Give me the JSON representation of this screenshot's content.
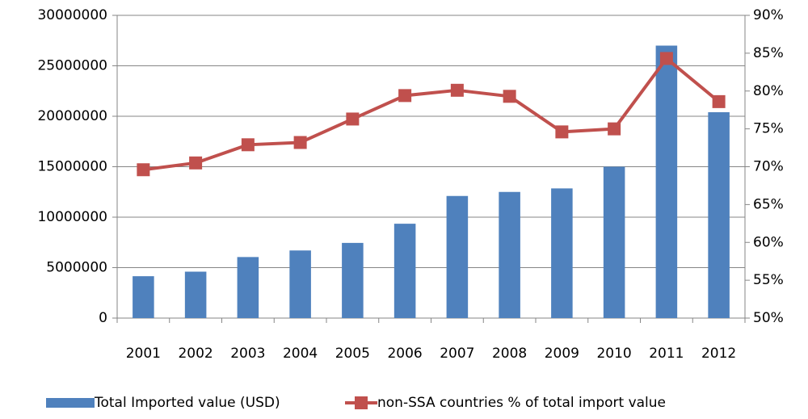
{
  "chart_data": {
    "type": "bar",
    "categories": [
      "2001",
      "2002",
      "2003",
      "2004",
      "2005",
      "2006",
      "2007",
      "2008",
      "2009",
      "2010",
      "2011",
      "2012"
    ],
    "series": [
      {
        "name": "Total Imported value (USD)",
        "type": "bar",
        "color": "#4f81bd",
        "values": [
          4150000,
          4600000,
          6050000,
          6700000,
          7450000,
          9350000,
          12100000,
          12500000,
          12850000,
          15000000,
          27000000,
          20400000
        ]
      },
      {
        "name": "non-SSA countries % of total import value",
        "type": "line",
        "axis": "y2",
        "color": "#c0504d",
        "values": [
          69.6,
          70.5,
          72.9,
          73.2,
          76.3,
          79.4,
          80.1,
          79.3,
          74.6,
          75.0,
          84.3,
          78.6
        ]
      }
    ],
    "ylim": [
      0,
      30000000
    ],
    "yticks": [
      0,
      5000000,
      10000000,
      15000000,
      20000000,
      25000000,
      30000000
    ],
    "y2lim": [
      50,
      90
    ],
    "y2ticks": [
      {
        "value": 50,
        "label": "50%"
      },
      {
        "value": 55,
        "label": "55%"
      },
      {
        "value": 60,
        "label": "60%"
      },
      {
        "value": 65,
        "label": "65%"
      },
      {
        "value": 70,
        "label": "70%"
      },
      {
        "value": 75,
        "label": "75%"
      },
      {
        "value": 80,
        "label": "80%"
      },
      {
        "value": 85,
        "label": "85%"
      },
      {
        "value": 90,
        "label": "90%"
      }
    ],
    "grid": true,
    "legend": "bottom"
  }
}
